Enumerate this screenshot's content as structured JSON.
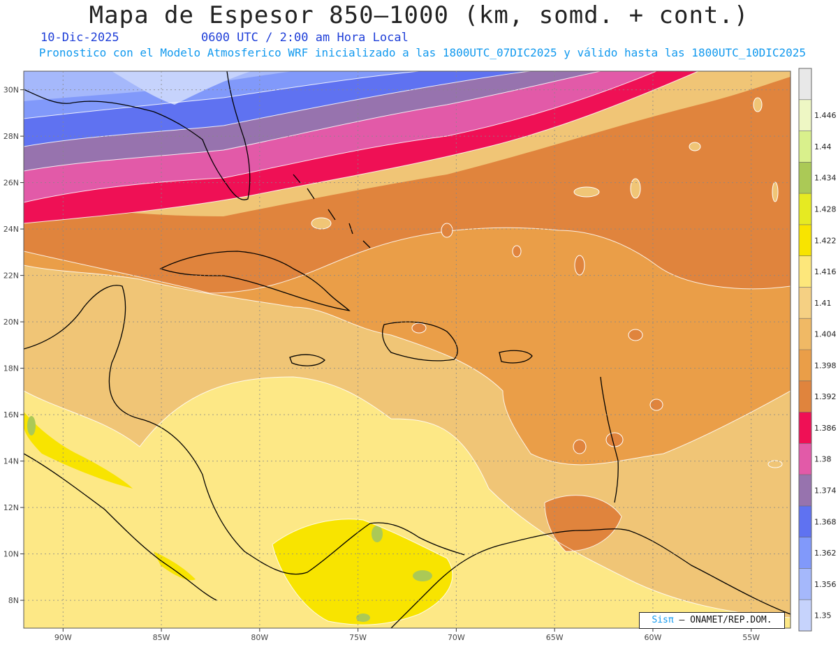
{
  "header": {
    "title": "Mapa de Espesor 850—1000 (km, somd. + cont.)",
    "date": "10-Dic-2025",
    "time": "0600 UTC / 2:00 am Hora Local",
    "model_info": "Pronostico con el Modelo Atmosferico WRF inicializado a las 1800UTC_07DIC2025 y válido hasta las  1800UTC_10DIC2025"
  },
  "map": {
    "lon_range": [
      -92,
      -53
    ],
    "lat_range": [
      6.8,
      30.8
    ],
    "lon_ticks": [
      {
        "value": -90,
        "label": "90W"
      },
      {
        "value": -85,
        "label": "85W"
      },
      {
        "value": -80,
        "label": "80W"
      },
      {
        "value": -75,
        "label": "75W"
      },
      {
        "value": -70,
        "label": "70W"
      },
      {
        "value": -65,
        "label": "65W"
      },
      {
        "value": -60,
        "label": "60W"
      },
      {
        "value": -55,
        "label": "55W"
      }
    ],
    "lat_ticks": [
      {
        "value": 8,
        "label": "8N"
      },
      {
        "value": 10,
        "label": "10N"
      },
      {
        "value": 12,
        "label": "12N"
      },
      {
        "value": 14,
        "label": "14N"
      },
      {
        "value": 16,
        "label": "16N"
      },
      {
        "value": 18,
        "label": "18N"
      },
      {
        "value": 20,
        "label": "20N"
      },
      {
        "value": 22,
        "label": "22N"
      },
      {
        "value": 24,
        "label": "24N"
      },
      {
        "value": 26,
        "label": "26N"
      },
      {
        "value": 28,
        "label": "28N"
      },
      {
        "value": 30,
        "label": "30N"
      }
    ],
    "gridlines": true
  },
  "colorbar": {
    "units": "km",
    "levels": [
      "1.35",
      "1.356",
      "1.362",
      "1.368",
      "1.374",
      "1.38",
      "1.386",
      "1.392",
      "1.398",
      "1.404",
      "1.41",
      "1.416",
      "1.422",
      "1.428",
      "1.434",
      "1.44",
      "1.446"
    ],
    "colors": [
      "#c6d3fc",
      "#a5b8fb",
      "#8199fa",
      "#5f72f1",
      "#9773ae",
      "#e25aa8",
      "#ef1055",
      "#e0843d",
      "#ea9e48",
      "#f0b965",
      "#f5d083",
      "#fde77b",
      "#f8e400",
      "#e6ea22",
      "#abc956",
      "#d9f08c",
      "#eef7c4",
      "#e8e8e8"
    ]
  },
  "credit": {
    "brand": "Sisπ",
    "text": "– ONAMET/REP.DOM."
  }
}
